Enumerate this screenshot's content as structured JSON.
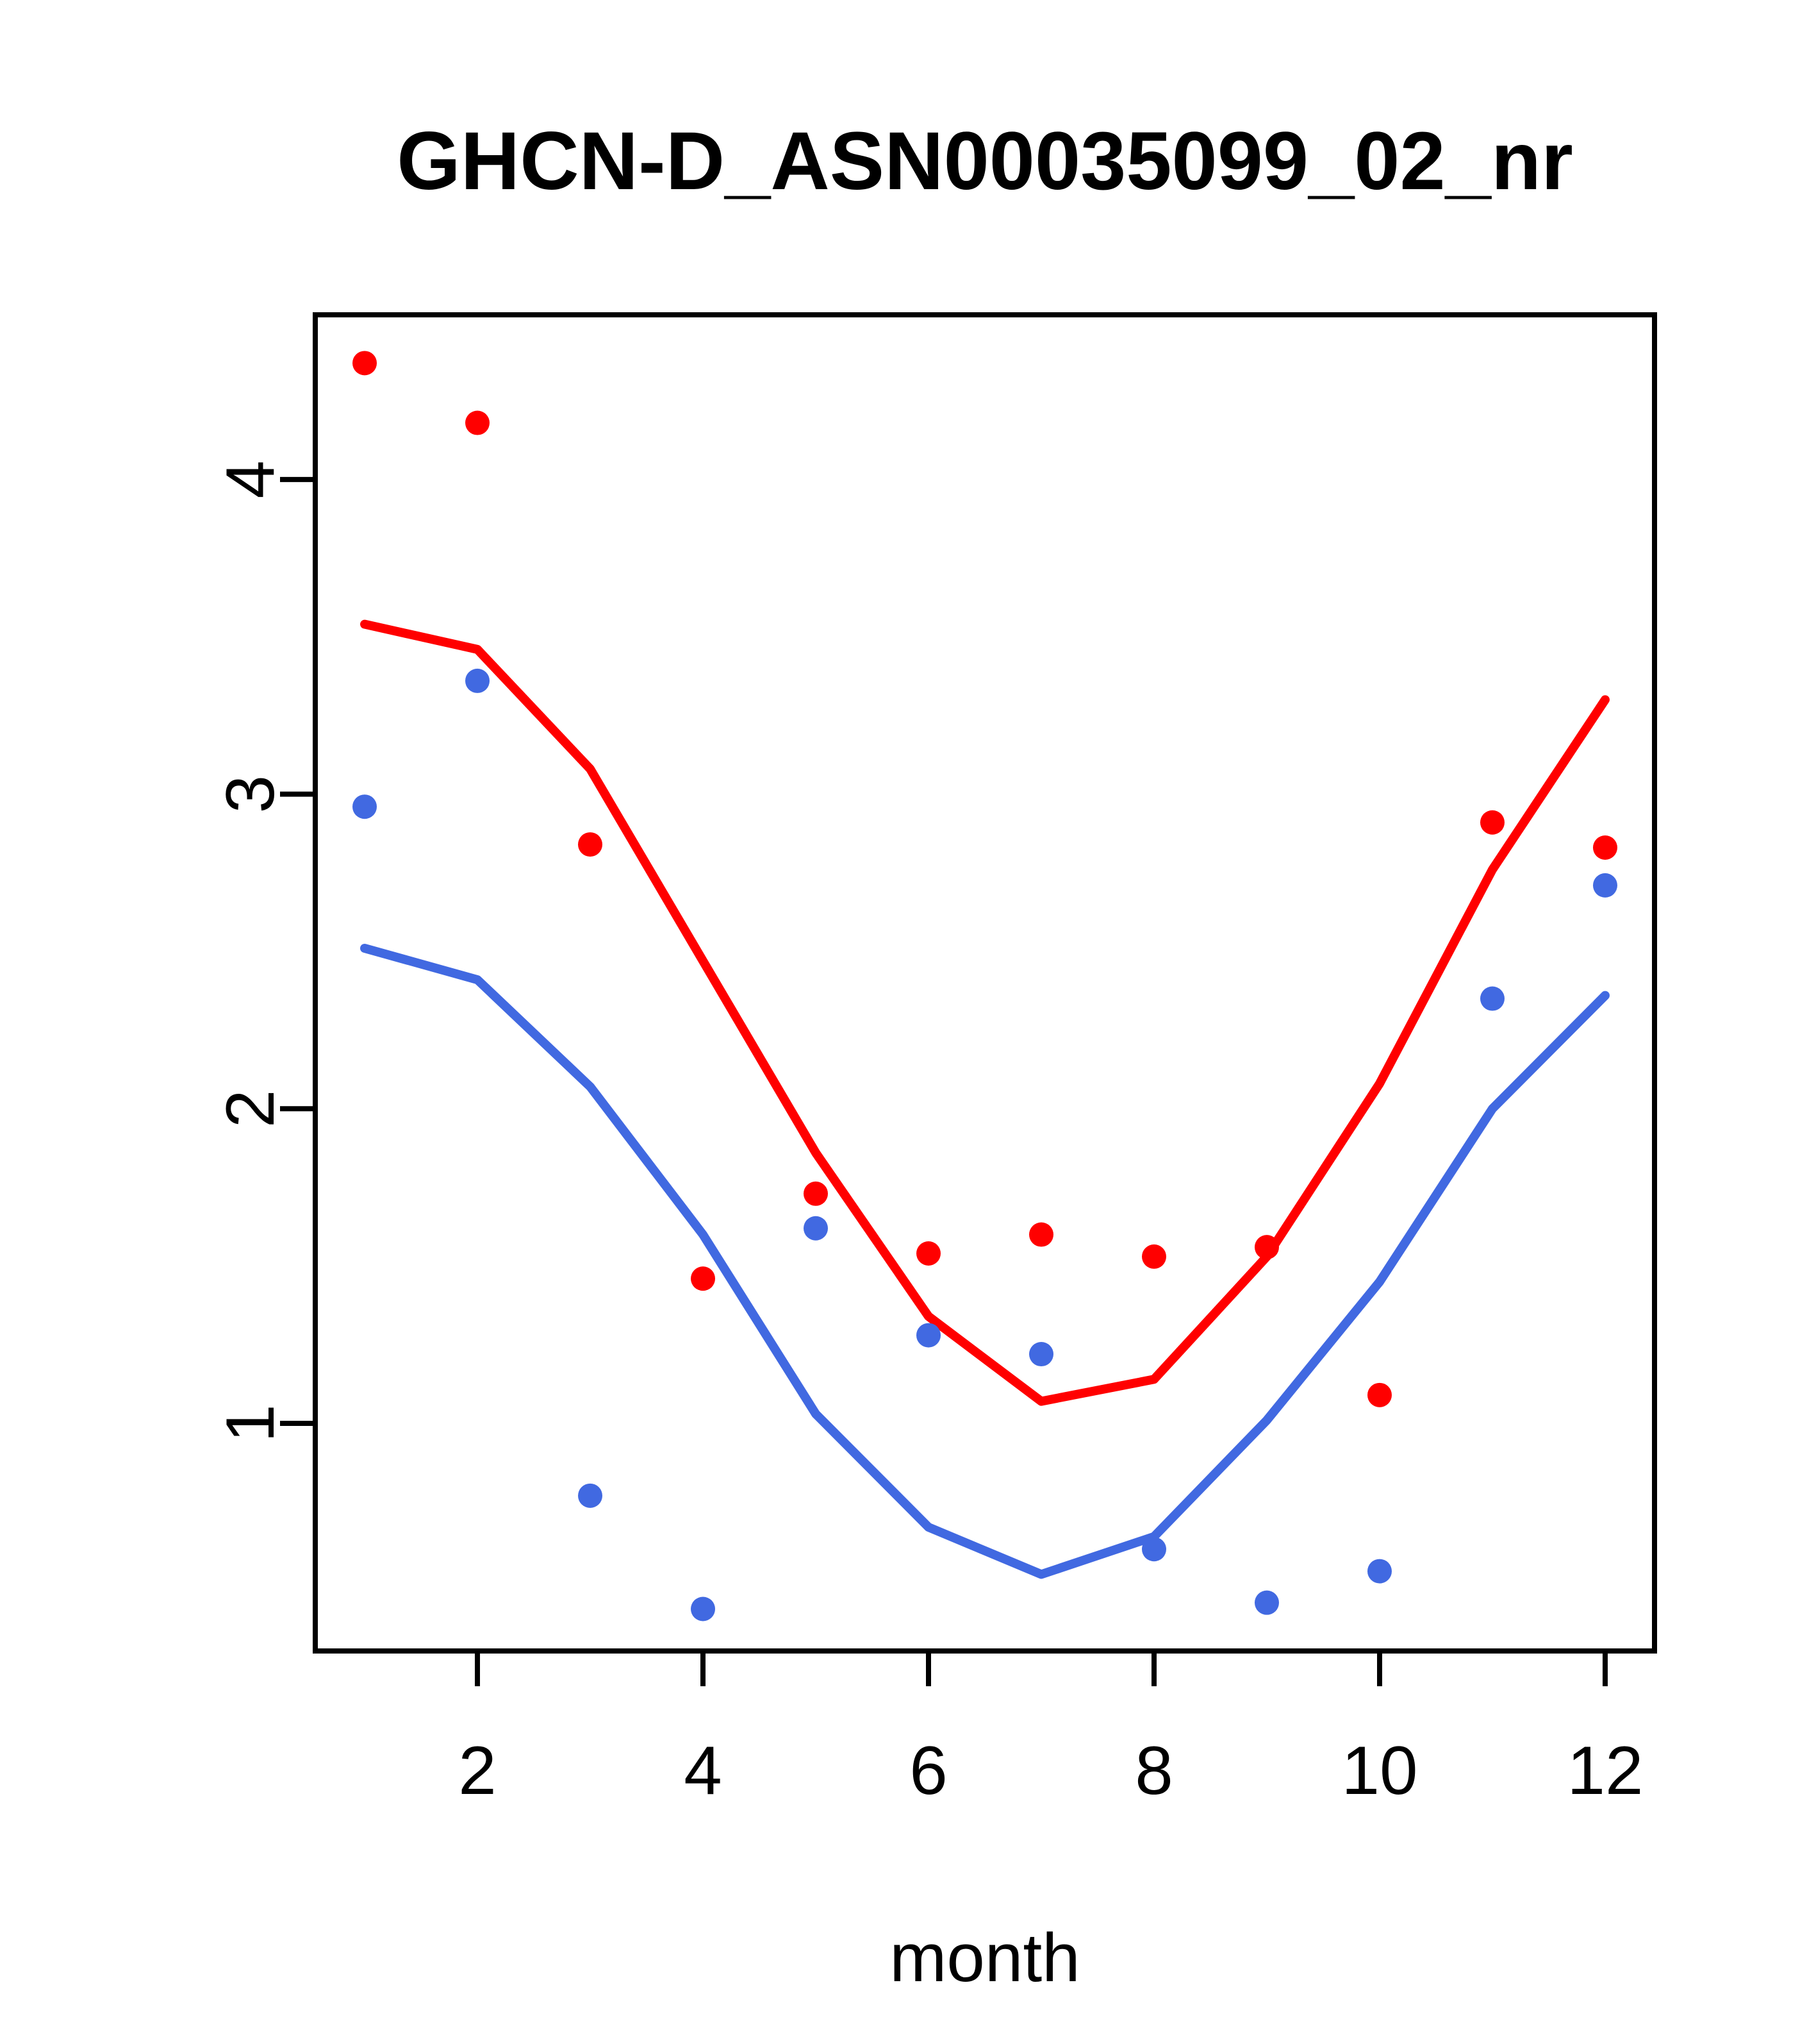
{
  "title": "GHCN-D_ASN00035099_02_nr",
  "chart_data": {
    "type": "line",
    "subtype": "lines-and-points-overlay",
    "title": "GHCN-D_ASN00035099_02_nr",
    "xlabel": "month",
    "ylabel": "",
    "x": [
      1,
      2,
      3,
      4,
      5,
      6,
      7,
      8,
      9,
      10,
      11,
      12
    ],
    "x_ticks": [
      2,
      4,
      6,
      8,
      10,
      12
    ],
    "y_ticks": [
      1,
      2,
      3,
      4
    ],
    "xlim": [
      0.5623,
      12.4377
    ],
    "ylim": [
      0.2765,
      4.5235
    ],
    "grid": false,
    "legend": "none",
    "series": [
      {
        "name": "red-points",
        "kind": "points",
        "color": "#FF0000",
        "values": [
          4.37,
          4.18,
          2.84,
          1.46,
          1.73,
          1.54,
          1.6,
          1.53,
          1.56,
          1.09,
          2.91,
          2.83
        ]
      },
      {
        "name": "blue-points",
        "kind": "points",
        "color": "#4169E1",
        "values": [
          2.96,
          3.36,
          0.77,
          0.41,
          1.62,
          1.28,
          1.22,
          0.6,
          0.43,
          0.53,
          2.35,
          2.71
        ]
      },
      {
        "name": "red-line",
        "kind": "line",
        "color": "#FF0000",
        "values": [
          3.54,
          3.46,
          3.08,
          2.47,
          1.86,
          1.34,
          1.07,
          1.14,
          1.53,
          2.08,
          2.76,
          3.3
        ]
      },
      {
        "name": "blue-line",
        "kind": "line",
        "color": "#4169E1",
        "values": [
          2.51,
          2.41,
          2.07,
          1.6,
          1.03,
          0.67,
          0.52,
          0.64,
          1.01,
          1.45,
          2.0,
          2.36
        ]
      }
    ],
    "axis_color": "#000000",
    "background_color": "#FFFFFF"
  }
}
